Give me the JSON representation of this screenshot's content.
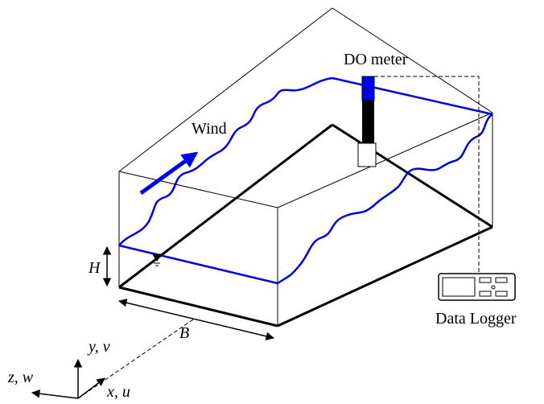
{
  "labels": {
    "do_meter": "DO meter",
    "wind": "Wind",
    "h": "H",
    "b": "B",
    "data_logger": "Data Logger",
    "y_axis": "y, v",
    "z_axis": "z, w",
    "x_axis": "x, u"
  }
}
